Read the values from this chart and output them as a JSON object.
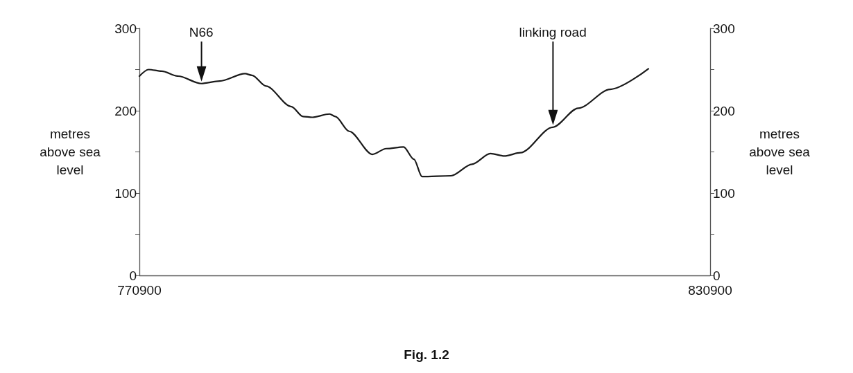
{
  "chart_data": {
    "type": "line",
    "title": "Fig. 1.2",
    "ylabel": "metres\nabove sea\nlevel",
    "y2label": "metres\nabove sea\nlevel",
    "x": [
      770900,
      771870,
      773260,
      774960,
      777400,
      779340,
      782010,
      782740,
      784200,
      786880,
      788100,
      789070,
      790890,
      791500,
      792960,
      795390,
      796850,
      798670,
      799760,
      800610,
      803670,
      805860,
      807800,
      809260,
      810960,
      814360,
      817030,
      820400,
      824410
    ],
    "series": [
      {
        "color": "#1a1a1a",
        "values": [
          242,
          250,
          248,
          242,
          233,
          236,
          245,
          243,
          230,
          205,
          193,
          192,
          196,
          193,
          175,
          147,
          154,
          156,
          141,
          120,
          121,
          135,
          148,
          145,
          149,
          180,
          203,
          226,
          251
        ]
      }
    ],
    "xlim": [
      770900,
      830900
    ],
    "xticks": [
      770900,
      830900
    ],
    "ylim": [
      0,
      300
    ],
    "yticks": [
      0,
      {
        "value": 50,
        "label": null
      },
      100,
      {
        "value": 150,
        "label": null
      },
      200,
      {
        "value": 250,
        "label": null
      },
      300
    ],
    "y2lim": [
      0,
      300
    ],
    "y2ticks": [
      0,
      {
        "value": 50,
        "label": null
      },
      100,
      {
        "value": 150,
        "label": null
      },
      200,
      {
        "value": 250,
        "label": null
      },
      300
    ],
    "annotations": [
      {
        "text": "N66",
        "x": 777400
      },
      {
        "text": "linking road",
        "x": 814360
      }
    ],
    "grid": false
  }
}
